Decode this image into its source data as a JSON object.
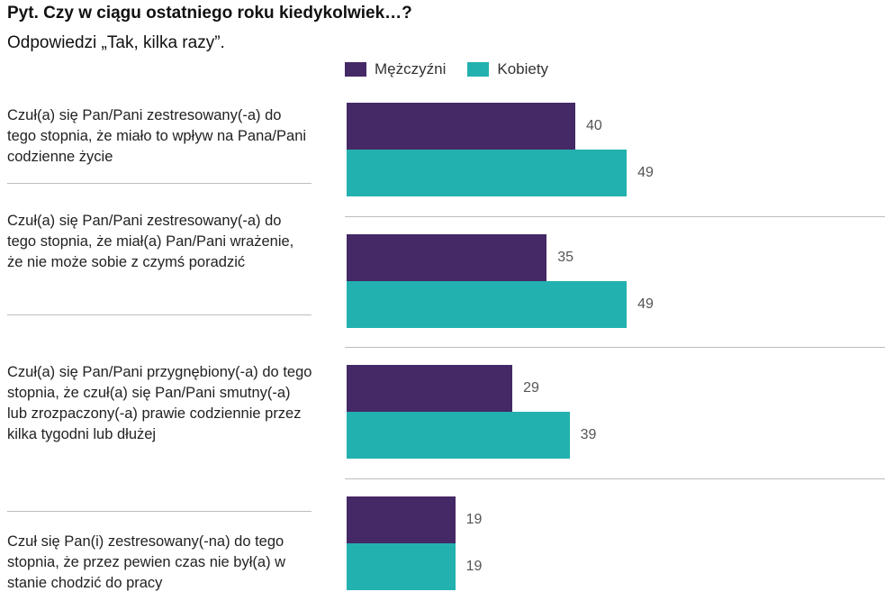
{
  "header": {
    "title": "Pyt. Czy w ciągu ostatniego roku kiedykolwiek…?",
    "subtitle": "Odpowiedzi „Tak, kilka razy”."
  },
  "colors": {
    "men": "#452866",
    "women": "#22b1ae",
    "separator": "#bdbdbd"
  },
  "chart_data": {
    "type": "bar",
    "orientation": "horizontal",
    "categories": [
      "Czuł(a) się Pan/Pani zestresowany(-a) do tego stopnia, że miało to wpływ na Pana/Pani codzienne życie",
      "Czuł(a) się Pan/Pani zestresowany(-a) do tego stopnia, że miał(a) Pan/Pani wrażenie, że nie może sobie z czymś poradzić",
      "Czuł(a) się Pan/Pani przygnębiony(-a) do tego stopnia, że czuł(a) się Pan/Pani smutny(-a) lub zrozpaczony(-a) prawie codziennie przez kilka tygodni lub dłużej",
      "Czuł się Pan(i) zestresowany(-na) do tego stopnia, że przez pewien czas nie był(a) w stanie chodzić do pracy"
    ],
    "series": [
      {
        "name": "Mężczyźni",
        "values": [
          40,
          35,
          29,
          19
        ]
      },
      {
        "name": "Kobiety",
        "values": [
          49,
          49,
          39,
          19
        ]
      }
    ],
    "legend_position": "top",
    "data_labels": true,
    "xlim": [
      0,
      100
    ]
  }
}
